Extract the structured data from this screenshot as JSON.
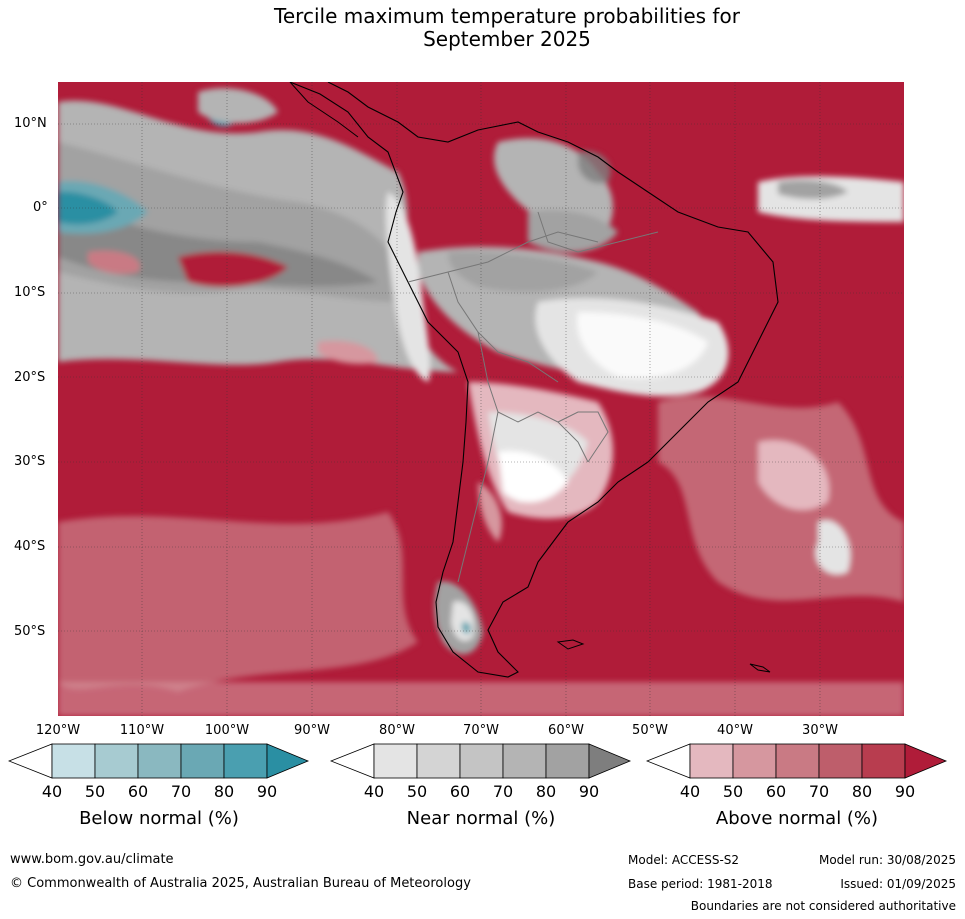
{
  "title_line1": "Tercile maximum temperature probabilities for",
  "title_line2": "September 2025",
  "lat_labels": [
    "10°N",
    "0°",
    "10°S",
    "20°S",
    "30°S",
    "40°S",
    "50°S"
  ],
  "lon_labels": [
    "120°W",
    "110°W",
    "100°W",
    "90°W",
    "80°W",
    "70°W",
    "60°W",
    "50°W",
    "40°W",
    "30°W"
  ],
  "colorbars": [
    {
      "title": "Below normal (%)",
      "ticks": [
        "40",
        "50",
        "60",
        "70",
        "80",
        "90"
      ],
      "colors": [
        "#ffffff",
        "#c7e0e6",
        "#a7cbd1",
        "#8ab8c0",
        "#6aa8b4",
        "#4a9fb0",
        "#2a8fa3"
      ]
    },
    {
      "title": "Near normal (%)",
      "ticks": [
        "40",
        "50",
        "60",
        "70",
        "80",
        "90"
      ],
      "colors": [
        "#ffffff",
        "#e4e4e4",
        "#d4d4d4",
        "#c4c4c4",
        "#b4b4b4",
        "#a2a2a2",
        "#7e7e7e"
      ]
    },
    {
      "title": "Above normal (%)",
      "ticks": [
        "40",
        "50",
        "60",
        "70",
        "80",
        "90"
      ],
      "colors": [
        "#ffffff",
        "#e4b8bf",
        "#d6979f",
        "#c97a84",
        "#be5e6b",
        "#b83d4f",
        "#b01c39"
      ]
    }
  ],
  "footer": {
    "url": "www.bom.gov.au/climate",
    "copyright": "© Commonwealth of Australia 2025, Australian Bureau of Meteorology",
    "model": "Model: ACCESS-S2",
    "base_period": "Base period: 1981-2018",
    "model_run": "Model run: 30/08/2025",
    "issued": "Issued: 01/09/2025",
    "disclaimer": "Boundaries are not considered authoritative"
  }
}
